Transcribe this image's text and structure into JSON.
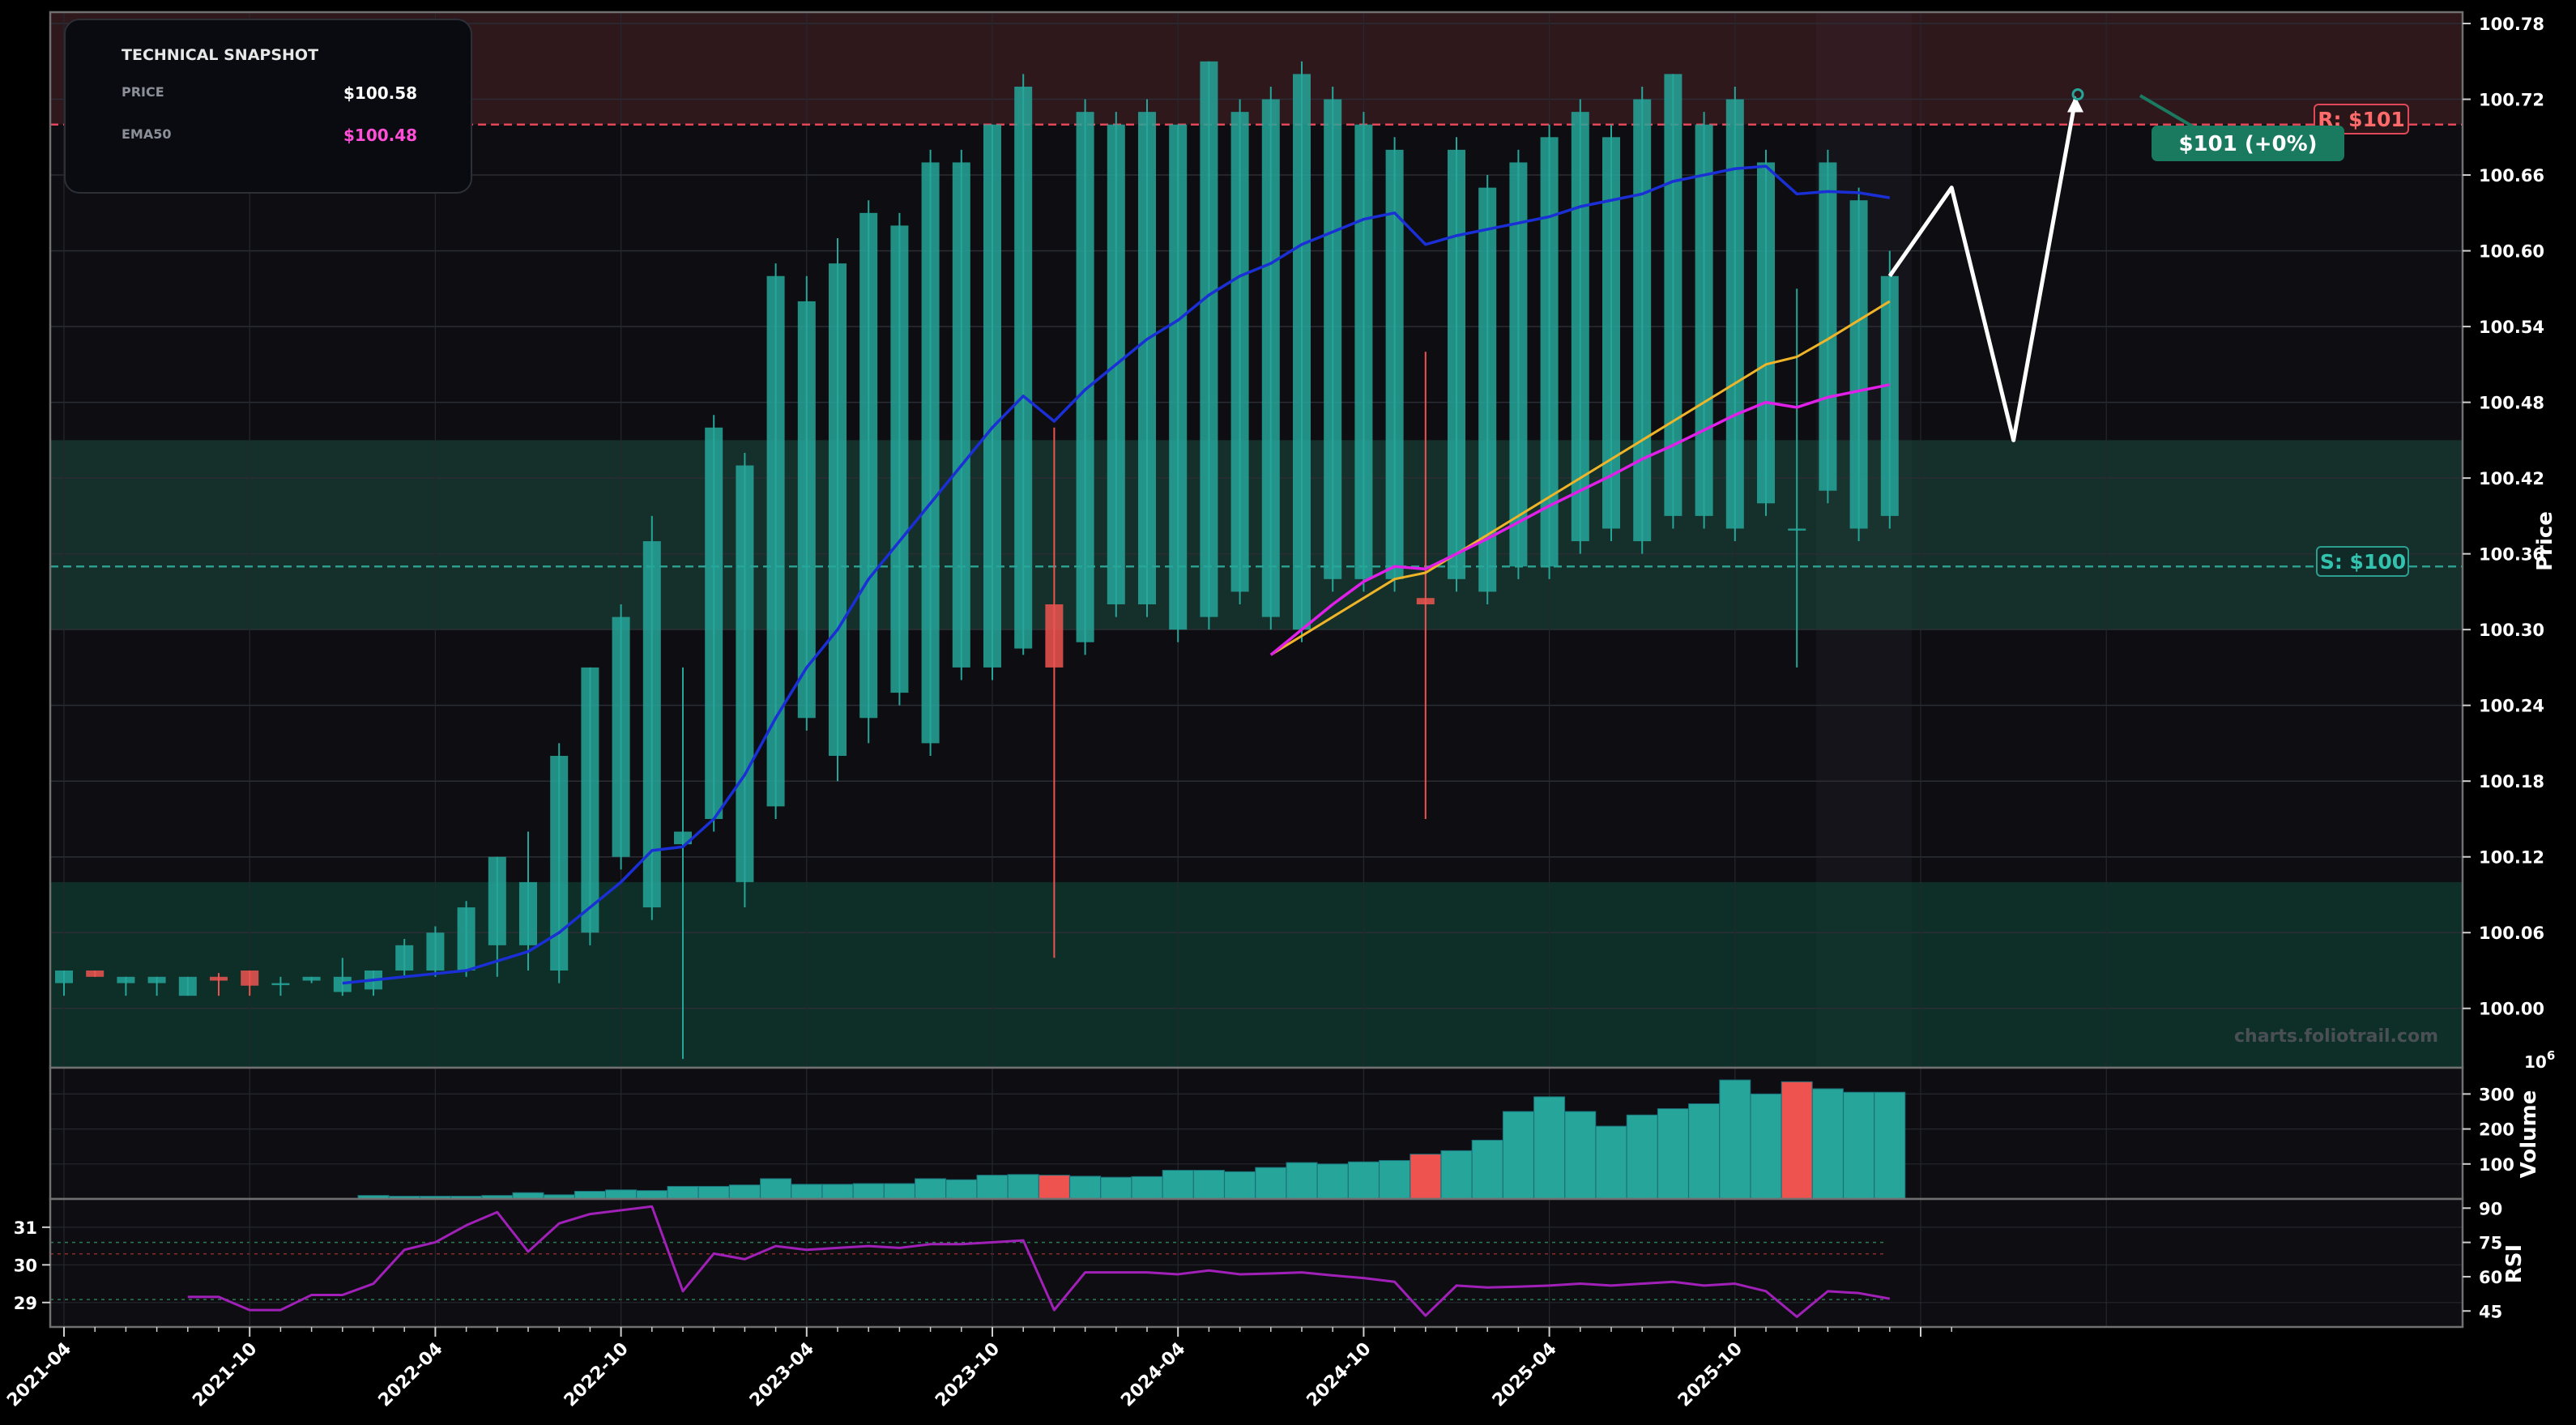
{
  "snapshot": {
    "title": "TECHNICAL SNAPSHOT",
    "price_label": "PRICE",
    "price_value": "$100.58",
    "ema_label": "EMA50",
    "ema_value": "$100.48"
  },
  "resistance_label": "R: $101",
  "support_label": "S: $100",
  "target_label": "$101 (+0%)",
  "watermark": "charts.foliotrail.com",
  "chart_data": {
    "type": "candlestick",
    "x_axis": {
      "type": "date",
      "tick_labels": [
        "2021-04",
        "2021-10",
        "2022-04",
        "2022-10",
        "2023-04",
        "2023-10",
        "2024-04",
        "2024-10",
        "2025-04",
        "2025-10"
      ],
      "range": [
        "2021-04",
        "2026-08"
      ]
    },
    "price_axis": {
      "label": "Price",
      "ticks": [
        100.0,
        100.06,
        100.12,
        100.18,
        100.24,
        100.3,
        100.36,
        100.42,
        100.48,
        100.54,
        100.6,
        100.66,
        100.72,
        100.78
      ],
      "range": [
        99.953,
        100.789
      ]
    },
    "volume_axis": {
      "label": "Volume",
      "exponent": "6",
      "ticks": [
        100,
        200,
        300
      ],
      "range": [
        0,
        375
      ]
    },
    "rsi_axis": {
      "label": "RSI",
      "right_ticks": [
        45,
        60,
        75,
        90
      ],
      "right_range": [
        38,
        94
      ],
      "left_ticks": [
        29,
        30,
        31
      ]
    },
    "resistance": 100.7,
    "support": 100.35,
    "zones": [
      {
        "name": "resistance-zone",
        "from": 100.7,
        "to": 100.789
      },
      {
        "name": "support-zone",
        "from": 100.3,
        "to": 100.45
      },
      {
        "name": "demand-zone",
        "from": 99.953,
        "to": 100.1
      }
    ],
    "candles": [
      [
        "2021-04",
        100.02,
        100.03,
        100.01,
        100.03
      ],
      [
        "2021-05",
        100.03,
        100.03,
        100.025,
        100.025
      ],
      [
        "2021-06",
        100.02,
        100.025,
        100.01,
        100.025
      ],
      [
        "2021-07",
        100.02,
        100.025,
        100.01,
        100.025
      ],
      [
        "2021-08",
        100.01,
        100.025,
        100.01,
        100.025
      ],
      [
        "2021-09",
        100.025,
        100.028,
        100.01,
        100.022
      ],
      [
        "2021-10",
        100.03,
        100.03,
        100.01,
        100.018
      ],
      [
        "2021-11",
        100.02,
        100.025,
        100.01,
        100.02
      ],
      [
        "2021-12",
        100.022,
        100.025,
        100.02,
        100.025
      ],
      [
        "2022-01",
        100.013,
        100.04,
        100.01,
        100.025
      ],
      [
        "2022-02",
        100.015,
        100.03,
        100.01,
        100.03
      ],
      [
        "2022-03",
        100.03,
        100.055,
        100.025,
        100.05
      ],
      [
        "2022-04",
        100.03,
        100.065,
        100.025,
        100.06
      ],
      [
        "2022-05",
        100.03,
        100.085,
        100.025,
        100.08
      ],
      [
        "2022-06",
        100.05,
        100.12,
        100.025,
        100.12
      ],
      [
        "2022-07",
        100.05,
        100.14,
        100.03,
        100.1
      ],
      [
        "2022-08",
        100.03,
        100.21,
        100.02,
        100.2
      ],
      [
        "2022-09",
        100.06,
        100.27,
        100.05,
        100.27
      ],
      [
        "2022-10",
        100.12,
        100.32,
        100.11,
        100.31
      ],
      [
        "2022-11",
        100.08,
        100.39,
        100.07,
        100.37
      ],
      [
        "2022-12",
        100.13,
        100.27,
        99.96,
        100.14
      ],
      [
        "2023-01",
        100.15,
        100.47,
        100.14,
        100.46
      ],
      [
        "2023-02",
        100.1,
        100.44,
        100.08,
        100.43
      ],
      [
        "2023-03",
        100.16,
        100.59,
        100.15,
        100.58
      ],
      [
        "2023-04",
        100.23,
        100.58,
        100.22,
        100.56
      ],
      [
        "2023-05",
        100.2,
        100.61,
        100.18,
        100.59
      ],
      [
        "2023-06",
        100.23,
        100.64,
        100.21,
        100.63
      ],
      [
        "2023-07",
        100.25,
        100.63,
        100.24,
        100.62
      ],
      [
        "2023-08",
        100.21,
        100.68,
        100.2,
        100.67
      ],
      [
        "2023-09",
        100.27,
        100.68,
        100.26,
        100.67
      ],
      [
        "2023-10",
        100.27,
        100.7,
        100.26,
        100.7
      ],
      [
        "2023-11",
        100.285,
        100.74,
        100.28,
        100.73
      ],
      [
        "2023-12",
        100.32,
        100.46,
        100.04,
        100.27
      ],
      [
        "2024-01",
        100.29,
        100.72,
        100.28,
        100.71
      ],
      [
        "2024-02",
        100.32,
        100.71,
        100.31,
        100.7
      ],
      [
        "2024-03",
        100.32,
        100.72,
        100.31,
        100.71
      ],
      [
        "2024-04",
        100.3,
        100.7,
        100.29,
        100.7
      ],
      [
        "2024-05",
        100.31,
        100.75,
        100.3,
        100.75
      ],
      [
        "2024-06",
        100.33,
        100.72,
        100.32,
        100.71
      ],
      [
        "2024-07",
        100.31,
        100.73,
        100.3,
        100.72
      ],
      [
        "2024-08",
        100.3,
        100.75,
        100.29,
        100.74
      ],
      [
        "2024-09",
        100.34,
        100.73,
        100.33,
        100.72
      ],
      [
        "2024-10",
        100.34,
        100.71,
        100.33,
        100.7
      ],
      [
        "2024-11",
        100.34,
        100.69,
        100.33,
        100.68
      ],
      [
        "2024-12",
        100.325,
        100.52,
        100.15,
        100.32
      ],
      [
        "2025-01",
        100.34,
        100.69,
        100.33,
        100.68
      ],
      [
        "2025-02",
        100.33,
        100.66,
        100.32,
        100.65
      ],
      [
        "2025-03",
        100.35,
        100.68,
        100.34,
        100.67
      ],
      [
        "2025-04",
        100.35,
        100.7,
        100.34,
        100.69
      ],
      [
        "2025-05",
        100.37,
        100.72,
        100.36,
        100.71
      ],
      [
        "2025-06",
        100.38,
        100.7,
        100.37,
        100.69
      ],
      [
        "2025-07",
        100.37,
        100.73,
        100.36,
        100.72
      ],
      [
        "2025-08",
        100.39,
        100.74,
        100.38,
        100.74
      ],
      [
        "2025-09",
        100.39,
        100.71,
        100.38,
        100.7
      ],
      [
        "2025-10",
        100.38,
        100.73,
        100.37,
        100.72
      ],
      [
        "2025-11",
        100.4,
        100.68,
        100.39,
        100.67
      ],
      [
        "2025-12",
        100.38,
        100.57,
        100.27,
        100.38
      ],
      [
        "2026-01",
        100.41,
        100.68,
        100.4,
        100.67
      ],
      [
        "2026-02",
        100.38,
        100.65,
        100.37,
        100.64
      ],
      [
        "2026-03",
        100.39,
        100.6,
        100.38,
        100.58
      ]
    ],
    "ema_blue": [
      [
        "2022-01",
        100.02
      ],
      [
        "2022-03",
        100.025
      ],
      [
        "2022-05",
        100.03
      ],
      [
        "2022-07",
        100.045
      ],
      [
        "2022-08",
        100.06
      ],
      [
        "2022-09",
        100.08
      ],
      [
        "2022-10",
        100.1
      ],
      [
        "2022-11",
        100.125
      ],
      [
        "2022-12",
        100.128
      ],
      [
        "2023-01",
        100.15
      ],
      [
        "2023-02",
        100.185
      ],
      [
        "2023-03",
        100.23
      ],
      [
        "2023-04",
        100.27
      ],
      [
        "2023-05",
        100.3
      ],
      [
        "2023-06",
        100.34
      ],
      [
        "2023-07",
        100.37
      ],
      [
        "2023-08",
        100.4
      ],
      [
        "2023-09",
        100.43
      ],
      [
        "2023-10",
        100.46
      ],
      [
        "2023-11",
        100.485
      ],
      [
        "2023-12",
        100.465
      ],
      [
        "2024-01",
        100.49
      ],
      [
        "2024-02",
        100.51
      ],
      [
        "2024-03",
        100.53
      ],
      [
        "2024-04",
        100.545
      ],
      [
        "2024-05",
        100.565
      ],
      [
        "2024-06",
        100.58
      ],
      [
        "2024-07",
        100.59
      ],
      [
        "2024-08",
        100.605
      ],
      [
        "2024-09",
        100.615
      ],
      [
        "2024-10",
        100.625
      ],
      [
        "2024-11",
        100.63
      ],
      [
        "2024-12",
        100.605
      ],
      [
        "2025-01",
        100.612
      ],
      [
        "2025-02",
        100.617
      ],
      [
        "2025-03",
        100.622
      ],
      [
        "2025-04",
        100.627
      ],
      [
        "2025-05",
        100.635
      ],
      [
        "2025-06",
        100.64
      ],
      [
        "2025-07",
        100.645
      ],
      [
        "2025-08",
        100.655
      ],
      [
        "2025-09",
        100.66
      ],
      [
        "2025-10",
        100.665
      ],
      [
        "2025-11",
        100.667
      ],
      [
        "2025-12",
        100.645
      ],
      [
        "2026-01",
        100.647
      ],
      [
        "2026-02",
        100.646
      ],
      [
        "2026-03",
        100.642
      ]
    ],
    "ema_orange": [
      [
        "2024-07",
        100.28
      ],
      [
        "2024-08",
        100.295
      ],
      [
        "2024-09",
        100.31
      ],
      [
        "2024-10",
        100.325
      ],
      [
        "2024-11",
        100.34
      ],
      [
        "2024-12",
        100.345
      ],
      [
        "2025-01",
        100.36
      ],
      [
        "2025-02",
        100.375
      ],
      [
        "2025-03",
        100.39
      ],
      [
        "2025-04",
        100.405
      ],
      [
        "2025-05",
        100.42
      ],
      [
        "2025-06",
        100.435
      ],
      [
        "2025-07",
        100.45
      ],
      [
        "2025-08",
        100.465
      ],
      [
        "2025-09",
        100.48
      ],
      [
        "2025-10",
        100.495
      ],
      [
        "2025-11",
        100.51
      ],
      [
        "2025-12",
        100.516
      ],
      [
        "2026-01",
        100.53
      ],
      [
        "2026-02",
        100.545
      ],
      [
        "2026-03",
        100.56
      ]
    ],
    "ema_magenta": [
      [
        "2024-07",
        100.28
      ],
      [
        "2024-08",
        100.3
      ],
      [
        "2024-09",
        100.32
      ],
      [
        "2024-10",
        100.338
      ],
      [
        "2024-11",
        100.35
      ],
      [
        "2024-12",
        100.348
      ],
      [
        "2025-01",
        100.36
      ],
      [
        "2025-02",
        100.372
      ],
      [
        "2025-03",
        100.385
      ],
      [
        "2025-04",
        100.398
      ],
      [
        "2025-05",
        100.41
      ],
      [
        "2025-06",
        100.422
      ],
      [
        "2025-07",
        100.435
      ],
      [
        "2025-08",
        100.446
      ],
      [
        "2025-09",
        100.458
      ],
      [
        "2025-10",
        100.47
      ],
      [
        "2025-11",
        100.48
      ],
      [
        "2025-12",
        100.476
      ],
      [
        "2026-01",
        100.484
      ],
      [
        "2026-02",
        100.489
      ],
      [
        "2026-03",
        100.494
      ]
    ],
    "projection": [
      [
        "2026-03",
        100.58
      ],
      [
        "2026-05",
        100.65
      ],
      [
        "2026-07",
        100.45
      ],
      [
        "2026-09",
        100.72
      ]
    ],
    "volume": [
      [
        "2022-02",
        10,
        "up"
      ],
      [
        "2022-03",
        8,
        "up"
      ],
      [
        "2022-04",
        8,
        "up"
      ],
      [
        "2022-05",
        8,
        "up"
      ],
      [
        "2022-06",
        10,
        "up"
      ],
      [
        "2022-07",
        18,
        "up"
      ],
      [
        "2022-08",
        12,
        "up"
      ],
      [
        "2022-09",
        22,
        "up"
      ],
      [
        "2022-10",
        26,
        "up"
      ],
      [
        "2022-11",
        24,
        "up"
      ],
      [
        "2022-12",
        36,
        "up"
      ],
      [
        "2023-01",
        36,
        "up"
      ],
      [
        "2023-02",
        40,
        "up"
      ],
      [
        "2023-03",
        58,
        "up"
      ],
      [
        "2023-04",
        42,
        "up"
      ],
      [
        "2023-05",
        42,
        "up"
      ],
      [
        "2023-06",
        44,
        "up"
      ],
      [
        "2023-07",
        44,
        "up"
      ],
      [
        "2023-08",
        58,
        "up"
      ],
      [
        "2023-09",
        55,
        "up"
      ],
      [
        "2023-10",
        68,
        "up"
      ],
      [
        "2023-11",
        70,
        "up"
      ],
      [
        "2023-12",
        68,
        "down"
      ],
      [
        "2024-01",
        65,
        "up"
      ],
      [
        "2024-02",
        62,
        "up"
      ],
      [
        "2024-03",
        64,
        "up"
      ],
      [
        "2024-04",
        82,
        "up"
      ],
      [
        "2024-05",
        82,
        "up"
      ],
      [
        "2024-06",
        78,
        "up"
      ],
      [
        "2024-07",
        90,
        "up"
      ],
      [
        "2024-08",
        104,
        "up"
      ],
      [
        "2024-09",
        100,
        "up"
      ],
      [
        "2024-10",
        106,
        "up"
      ],
      [
        "2024-11",
        110,
        "up"
      ],
      [
        "2024-12",
        128,
        "down"
      ],
      [
        "2025-01",
        138,
        "up"
      ],
      [
        "2025-02",
        168,
        "up"
      ],
      [
        "2025-03",
        250,
        "up"
      ],
      [
        "2025-04",
        292,
        "up"
      ],
      [
        "2025-05",
        250,
        "up"
      ],
      [
        "2025-06",
        208,
        "up"
      ],
      [
        "2025-07",
        240,
        "up"
      ],
      [
        "2025-08",
        258,
        "up"
      ],
      [
        "2025-09",
        272,
        "up"
      ],
      [
        "2025-10",
        340,
        "up"
      ],
      [
        "2025-11",
        300,
        "up"
      ],
      [
        "2025-12",
        335,
        "down"
      ],
      [
        "2026-01",
        315,
        "up"
      ],
      [
        "2026-02",
        305,
        "up"
      ],
      [
        "2026-03",
        305,
        "up"
      ]
    ],
    "rsi": [
      [
        "2021-08",
        29.15
      ],
      [
        "2021-09",
        29.15
      ],
      [
        "2021-10",
        28.8
      ],
      [
        "2021-11",
        28.8
      ],
      [
        "2021-12",
        29.2
      ],
      [
        "2022-01",
        29.2
      ],
      [
        "2022-02",
        29.5
      ],
      [
        "2022-03",
        30.4
      ],
      [
        "2022-04",
        30.6
      ],
      [
        "2022-05",
        31.05
      ],
      [
        "2022-06",
        31.4
      ],
      [
        "2022-07",
        30.35
      ],
      [
        "2022-08",
        31.1
      ],
      [
        "2022-09",
        31.35
      ],
      [
        "2022-10",
        31.45
      ],
      [
        "2022-11",
        31.55
      ],
      [
        "2022-12",
        29.3
      ],
      [
        "2023-01",
        30.3
      ],
      [
        "2023-02",
        30.15
      ],
      [
        "2023-03",
        30.5
      ],
      [
        "2023-04",
        30.4
      ],
      [
        "2023-05",
        30.45
      ],
      [
        "2023-06",
        30.5
      ],
      [
        "2023-07",
        30.45
      ],
      [
        "2023-08",
        30.55
      ],
      [
        "2023-09",
        30.55
      ],
      [
        "2023-10",
        30.6
      ],
      [
        "2023-11",
        30.65
      ],
      [
        "2023-12",
        28.8
      ],
      [
        "2024-01",
        29.8
      ],
      [
        "2024-02",
        29.8
      ],
      [
        "2024-03",
        29.8
      ],
      [
        "2024-04",
        29.75
      ],
      [
        "2024-05",
        29.85
      ],
      [
        "2024-06",
        29.75
      ],
      [
        "2024-07",
        29.77
      ],
      [
        "2024-08",
        29.8
      ],
      [
        "2024-09",
        29.72
      ],
      [
        "2024-10",
        29.65
      ],
      [
        "2024-11",
        29.55
      ],
      [
        "2024-12",
        28.65
      ],
      [
        "2025-01",
        29.45
      ],
      [
        "2025-02",
        29.4
      ],
      [
        "2025-03",
        29.42
      ],
      [
        "2025-04",
        29.45
      ],
      [
        "2025-05",
        29.5
      ],
      [
        "2025-06",
        29.45
      ],
      [
        "2025-07",
        29.5
      ],
      [
        "2025-08",
        29.55
      ],
      [
        "2025-09",
        29.45
      ],
      [
        "2025-10",
        29.5
      ],
      [
        "2025-11",
        29.3
      ],
      [
        "2025-12",
        28.62
      ],
      [
        "2026-01",
        29.3
      ],
      [
        "2026-02",
        29.25
      ],
      [
        "2026-03",
        29.1
      ]
    ],
    "colors": {
      "background": "#000000",
      "panel": "#0e0e12",
      "up": "#26a69a",
      "down": "#ef5350",
      "ema_blue": "#1a2fd6",
      "ema_orange": "#f0b429",
      "ema_magenta": "#e020e8",
      "projection": "#ffffff",
      "resistance": "#e0485a",
      "support": "#2b9e8f",
      "target": "#1a7a60",
      "rsi": "#a020b8",
      "snapshot_ema": "#ff4fd8"
    }
  }
}
